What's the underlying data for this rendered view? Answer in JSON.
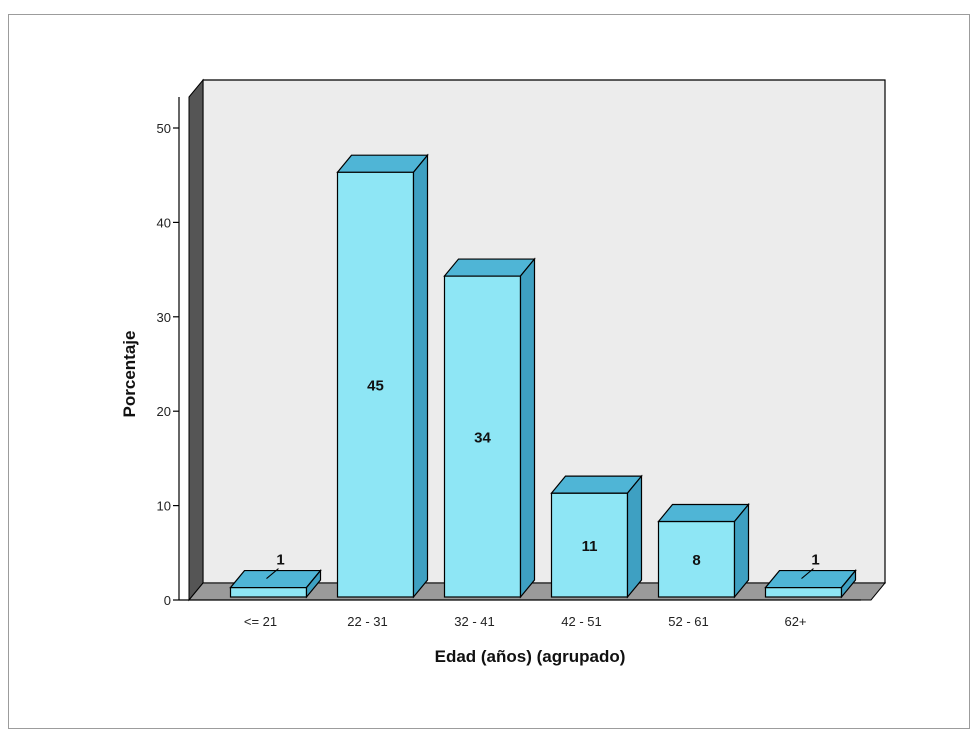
{
  "chart_data": {
    "type": "bar",
    "categories": [
      "<= 21",
      "22 - 31",
      "32 - 41",
      "42 - 51",
      "52 - 61",
      "62+"
    ],
    "values": [
      1,
      45,
      34,
      11,
      8,
      1
    ],
    "data_labels": [
      "1",
      "45",
      "34",
      "11",
      "8",
      "1"
    ],
    "title": "",
    "xlabel": "Edad (años) (agrupado)",
    "ylabel": "Porcentaje",
    "ylim": [
      0,
      50
    ],
    "yticks": [
      0,
      10,
      20,
      30,
      40,
      50
    ],
    "grid": false,
    "three_d": true,
    "colors": {
      "bar_front": "#8ee6f5",
      "bar_top": "#4fb5d6",
      "bar_side": "#3ea0c2",
      "back_wall": "#ececec",
      "left_wall": "#555555",
      "floor": "#9a9a9a",
      "outline": "#000000"
    }
  }
}
